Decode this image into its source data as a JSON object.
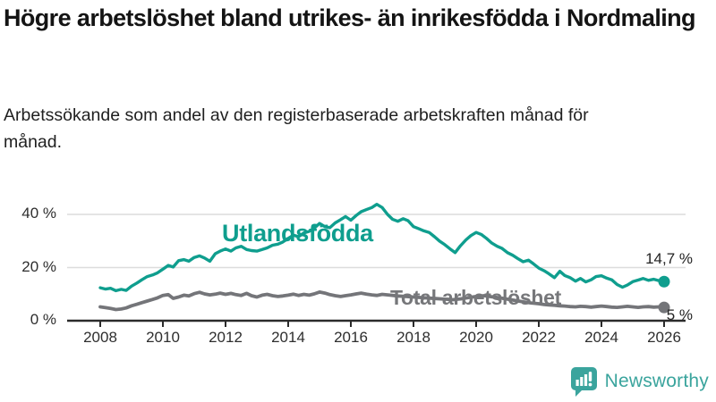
{
  "header": {
    "title": "Högre arbetslöshet bland utrikes- än inrikesfödda i Nordmaling",
    "subtitle": "Arbetssökande som andel av den registerbaserade arbetskraften månad för månad."
  },
  "chart_data": {
    "type": "line",
    "title": "Högre arbetslöshet bland utrikes- än inrikesfödda i Nordmaling",
    "xlabel": "",
    "ylabel": "Arbetssökande som andel av den registerbaserade arbetskraften",
    "xlim": [
      2007.9,
      2026.7
    ],
    "ylim": [
      0,
      47
    ],
    "grid": "horizontal",
    "legend_position": "inline-labels",
    "x_ticks": [
      2008,
      2010,
      2012,
      2014,
      2016,
      2018,
      2020,
      2022,
      2024,
      2026
    ],
    "y_ticks": [
      {
        "v": 0,
        "label": "0 %"
      },
      {
        "v": 20,
        "label": "20 %"
      },
      {
        "v": 40,
        "label": "40 %"
      }
    ],
    "series": [
      {
        "name": "Utlandsfödda",
        "color": "#0f9e8e",
        "end_label": "14,7 %",
        "end_value": 14.7,
        "points": [
          [
            2008.0,
            12.4
          ],
          [
            2008.17,
            11.9
          ],
          [
            2008.33,
            12.2
          ],
          [
            2008.5,
            11.3
          ],
          [
            2008.67,
            11.8
          ],
          [
            2008.83,
            11.4
          ],
          [
            2009.0,
            13.0
          ],
          [
            2009.17,
            14.2
          ],
          [
            2009.33,
            15.4
          ],
          [
            2009.5,
            16.6
          ],
          [
            2009.67,
            17.2
          ],
          [
            2009.83,
            18.0
          ],
          [
            2010.0,
            19.4
          ],
          [
            2010.17,
            20.8
          ],
          [
            2010.33,
            20.2
          ],
          [
            2010.5,
            22.6
          ],
          [
            2010.67,
            23.0
          ],
          [
            2010.83,
            22.4
          ],
          [
            2011.0,
            23.8
          ],
          [
            2011.17,
            24.4
          ],
          [
            2011.33,
            23.6
          ],
          [
            2011.5,
            22.4
          ],
          [
            2011.67,
            25.2
          ],
          [
            2011.83,
            26.2
          ],
          [
            2012.0,
            27.0
          ],
          [
            2012.17,
            26.2
          ],
          [
            2012.33,
            27.4
          ],
          [
            2012.5,
            28.0
          ],
          [
            2012.67,
            26.8
          ],
          [
            2012.83,
            26.4
          ],
          [
            2013.0,
            26.2
          ],
          [
            2013.17,
            26.8
          ],
          [
            2013.33,
            27.4
          ],
          [
            2013.5,
            28.4
          ],
          [
            2013.67,
            28.8
          ],
          [
            2013.83,
            29.6
          ],
          [
            2014.0,
            31.0
          ],
          [
            2014.17,
            32.2
          ],
          [
            2014.33,
            31.6
          ],
          [
            2014.5,
            33.0
          ],
          [
            2014.67,
            33.6
          ],
          [
            2014.83,
            34.8
          ],
          [
            2015.0,
            36.6
          ],
          [
            2015.17,
            35.4
          ],
          [
            2015.33,
            35.0
          ],
          [
            2015.5,
            36.8
          ],
          [
            2015.67,
            38.0
          ],
          [
            2015.83,
            39.2
          ],
          [
            2016.0,
            37.8
          ],
          [
            2016.17,
            39.6
          ],
          [
            2016.33,
            41.0
          ],
          [
            2016.5,
            41.8
          ],
          [
            2016.67,
            42.6
          ],
          [
            2016.83,
            43.8
          ],
          [
            2017.0,
            42.6
          ],
          [
            2017.17,
            40.0
          ],
          [
            2017.33,
            38.2
          ],
          [
            2017.5,
            37.4
          ],
          [
            2017.67,
            38.4
          ],
          [
            2017.83,
            37.6
          ],
          [
            2018.0,
            35.4
          ],
          [
            2018.17,
            34.6
          ],
          [
            2018.33,
            33.8
          ],
          [
            2018.5,
            33.2
          ],
          [
            2018.67,
            31.6
          ],
          [
            2018.83,
            30.0
          ],
          [
            2019.0,
            28.6
          ],
          [
            2019.17,
            27.0
          ],
          [
            2019.33,
            25.6
          ],
          [
            2019.5,
            28.2
          ],
          [
            2019.67,
            30.4
          ],
          [
            2019.83,
            32.0
          ],
          [
            2020.0,
            33.2
          ],
          [
            2020.17,
            32.4
          ],
          [
            2020.33,
            31.0
          ],
          [
            2020.5,
            29.2
          ],
          [
            2020.67,
            28.0
          ],
          [
            2020.83,
            27.2
          ],
          [
            2021.0,
            25.6
          ],
          [
            2021.17,
            24.6
          ],
          [
            2021.33,
            23.4
          ],
          [
            2021.5,
            22.2
          ],
          [
            2021.67,
            22.8
          ],
          [
            2021.83,
            21.4
          ],
          [
            2022.0,
            19.8
          ],
          [
            2022.17,
            18.8
          ],
          [
            2022.33,
            17.6
          ],
          [
            2022.5,
            16.2
          ],
          [
            2022.67,
            18.6
          ],
          [
            2022.83,
            17.0
          ],
          [
            2023.0,
            16.2
          ],
          [
            2023.17,
            14.9
          ],
          [
            2023.33,
            15.9
          ],
          [
            2023.5,
            14.6
          ],
          [
            2023.67,
            15.4
          ],
          [
            2023.83,
            16.6
          ],
          [
            2024.0,
            16.9
          ],
          [
            2024.17,
            16.0
          ],
          [
            2024.33,
            15.4
          ],
          [
            2024.5,
            13.6
          ],
          [
            2024.67,
            12.6
          ],
          [
            2024.83,
            13.4
          ],
          [
            2025.0,
            14.7
          ],
          [
            2025.17,
            15.3
          ],
          [
            2025.33,
            15.9
          ],
          [
            2025.5,
            15.2
          ],
          [
            2025.67,
            15.6
          ],
          [
            2025.83,
            15.1
          ],
          [
            2026.0,
            14.7
          ]
        ]
      },
      {
        "name": "Total arbetslöshet",
        "color": "#747579",
        "end_label": "5 %",
        "end_value": 5.0,
        "points": [
          [
            2008.0,
            5.2
          ],
          [
            2008.17,
            4.9
          ],
          [
            2008.33,
            4.6
          ],
          [
            2008.5,
            4.2
          ],
          [
            2008.67,
            4.4
          ],
          [
            2008.83,
            4.8
          ],
          [
            2009.0,
            5.6
          ],
          [
            2009.17,
            6.2
          ],
          [
            2009.33,
            6.8
          ],
          [
            2009.5,
            7.4
          ],
          [
            2009.67,
            8.0
          ],
          [
            2009.83,
            8.6
          ],
          [
            2010.0,
            9.5
          ],
          [
            2010.17,
            9.8
          ],
          [
            2010.33,
            8.4
          ],
          [
            2010.5,
            8.9
          ],
          [
            2010.67,
            9.6
          ],
          [
            2010.83,
            9.3
          ],
          [
            2011.0,
            10.2
          ],
          [
            2011.17,
            10.7
          ],
          [
            2011.33,
            10.1
          ],
          [
            2011.5,
            9.7
          ],
          [
            2011.67,
            10.0
          ],
          [
            2011.83,
            10.4
          ],
          [
            2012.0,
            9.9
          ],
          [
            2012.17,
            10.3
          ],
          [
            2012.33,
            9.8
          ],
          [
            2012.5,
            9.5
          ],
          [
            2012.67,
            10.3
          ],
          [
            2012.83,
            9.4
          ],
          [
            2013.0,
            8.9
          ],
          [
            2013.17,
            9.6
          ],
          [
            2013.33,
            9.9
          ],
          [
            2013.5,
            9.4
          ],
          [
            2013.67,
            9.1
          ],
          [
            2013.83,
            9.3
          ],
          [
            2014.0,
            9.6
          ],
          [
            2014.17,
            10.0
          ],
          [
            2014.33,
            9.5
          ],
          [
            2014.5,
            9.9
          ],
          [
            2014.67,
            9.6
          ],
          [
            2014.83,
            10.1
          ],
          [
            2015.0,
            10.8
          ],
          [
            2015.17,
            10.4
          ],
          [
            2015.33,
            9.8
          ],
          [
            2015.5,
            9.4
          ],
          [
            2015.67,
            9.1
          ],
          [
            2015.83,
            9.4
          ],
          [
            2016.0,
            9.7
          ],
          [
            2016.17,
            10.1
          ],
          [
            2016.33,
            10.4
          ],
          [
            2016.5,
            10.0
          ],
          [
            2016.67,
            9.7
          ],
          [
            2016.83,
            9.5
          ],
          [
            2017.0,
            9.9
          ],
          [
            2017.25,
            9.6
          ],
          [
            2017.5,
            9.3
          ],
          [
            2017.75,
            9.1
          ],
          [
            2018.0,
            8.9
          ],
          [
            2018.25,
            8.7
          ],
          [
            2018.5,
            8.5
          ],
          [
            2018.75,
            8.3
          ],
          [
            2019.0,
            8.1
          ],
          [
            2019.25,
            7.9
          ],
          [
            2019.5,
            8.2
          ],
          [
            2019.75,
            8.7
          ],
          [
            2020.0,
            9.1
          ],
          [
            2020.25,
            9.4
          ],
          [
            2020.5,
            9.0
          ],
          [
            2020.75,
            8.6
          ],
          [
            2021.0,
            8.1
          ],
          [
            2021.25,
            7.6
          ],
          [
            2021.5,
            7.1
          ],
          [
            2021.75,
            6.7
          ],
          [
            2022.0,
            6.4
          ],
          [
            2022.17,
            6.1
          ],
          [
            2022.33,
            5.9
          ],
          [
            2022.5,
            5.8
          ],
          [
            2022.67,
            5.6
          ],
          [
            2022.83,
            5.5
          ],
          [
            2023.0,
            5.3
          ],
          [
            2023.17,
            5.2
          ],
          [
            2023.33,
            5.4
          ],
          [
            2023.5,
            5.3
          ],
          [
            2023.67,
            5.1
          ],
          [
            2023.83,
            5.3
          ],
          [
            2024.0,
            5.5
          ],
          [
            2024.17,
            5.3
          ],
          [
            2024.33,
            5.1
          ],
          [
            2024.5,
            5.0
          ],
          [
            2024.67,
            5.2
          ],
          [
            2024.83,
            5.4
          ],
          [
            2025.0,
            5.2
          ],
          [
            2025.17,
            5.0
          ],
          [
            2025.33,
            5.2
          ],
          [
            2025.5,
            5.3
          ],
          [
            2025.67,
            5.1
          ],
          [
            2025.83,
            5.2
          ],
          [
            2026.0,
            5.0
          ]
        ]
      }
    ],
    "colors": {
      "axis": "#2b2b2b",
      "grid": "#dcdcdc",
      "tick_text": "#2e2e2e"
    }
  },
  "footer": {
    "brand": "Newsworthy",
    "brand_color": "#3aa49d"
  }
}
